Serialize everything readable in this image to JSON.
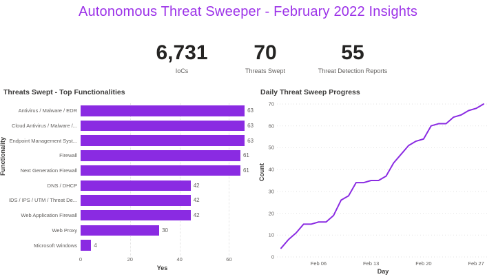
{
  "title": "Autonomous Threat Sweeper - February 2022 Insights",
  "colors": {
    "accent_purple": "#8A2BE2",
    "title_purple": "#9c32e8",
    "text_dark": "#252423",
    "text_gray": "#605E5C",
    "gridline": "#e2e2e2"
  },
  "kpis": [
    {
      "value": "6,731",
      "label": "IoCs"
    },
    {
      "value": "70",
      "label": "Threats Swept"
    },
    {
      "value": "55",
      "label": "Threat Detection Reports"
    }
  ],
  "chart_data": [
    {
      "type": "bar",
      "orientation": "horizontal",
      "title": "Threats Swept - Top Functionalities",
      "categories": [
        "Antivirus / Malware / EDR",
        "Cloud Antivirus / Malware /...",
        "Endpoint Management Syst...",
        "Firewall",
        "Next Generation Firewall",
        "DNS / DHCP",
        "IDS / IPS / UTM / Threat De...",
        "Web Application Firewall",
        "Web Proxy",
        "Microsoft Windows"
      ],
      "values": [
        63,
        63,
        63,
        61,
        61,
        42,
        42,
        42,
        30,
        4
      ],
      "xlabel": "Yes",
      "ylabel": "Functionality",
      "xlim": [
        0,
        66
      ],
      "xticks": [
        0,
        20,
        40,
        60
      ],
      "grid": "vertical-dotted",
      "data_labels": true,
      "bar_color": "#8A2BE2"
    },
    {
      "type": "line",
      "title": "Daily Threat Sweep Progress",
      "xlabel": "Day",
      "ylabel": "Count",
      "ylim": [
        0,
        70
      ],
      "yticks": [
        0,
        10,
        20,
        30,
        40,
        50,
        60,
        70
      ],
      "xticks": [
        {
          "day": 6,
          "label": "Feb 06"
        },
        {
          "day": 13,
          "label": "Feb 13"
        },
        {
          "day": 20,
          "label": "Feb 20"
        },
        {
          "day": 27,
          "label": "Feb 27"
        }
      ],
      "days": [
        1,
        2,
        3,
        4,
        5,
        6,
        7,
        8,
        9,
        10,
        11,
        12,
        13,
        14,
        15,
        16,
        17,
        18,
        19,
        20,
        21,
        22,
        23,
        24,
        25,
        26,
        27,
        28
      ],
      "values": [
        4,
        8,
        11,
        15,
        15,
        16,
        16,
        19,
        26,
        28,
        34,
        34,
        35,
        35,
        37,
        43,
        47,
        51,
        53,
        54,
        60,
        61,
        61,
        64,
        65,
        67,
        68,
        70
      ],
      "grid": "horizontal-dotted",
      "line_color": "#8A2BE2"
    }
  ]
}
